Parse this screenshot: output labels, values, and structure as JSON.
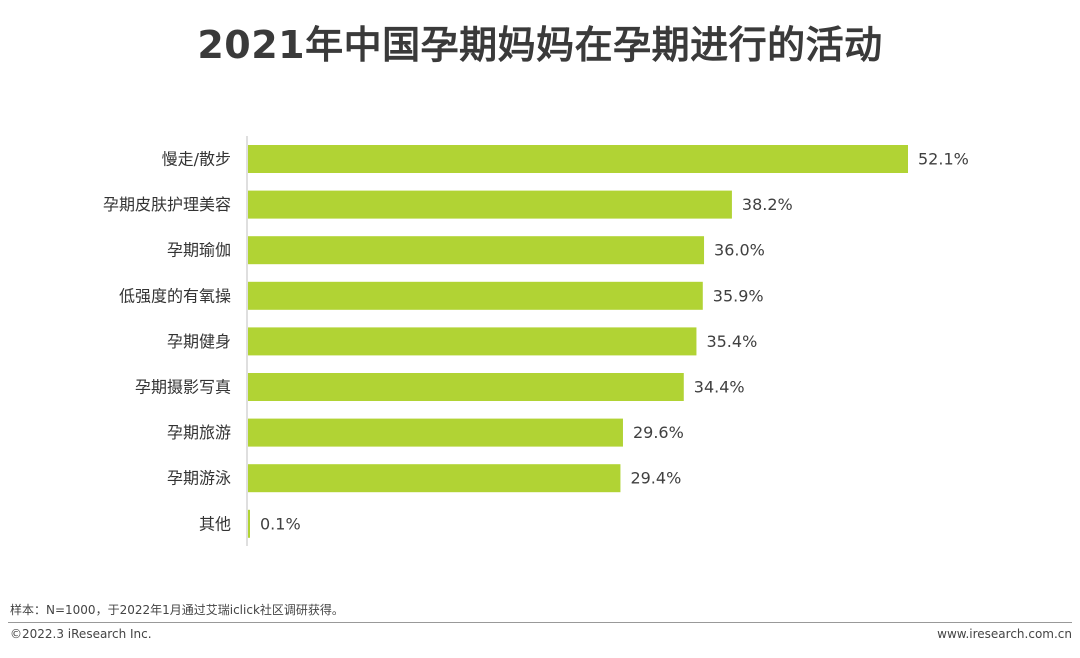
{
  "header": {
    "title": "2021年中国孕期妈妈在孕期进行的活动"
  },
  "chart_data": {
    "type": "bar",
    "orientation": "horizontal",
    "title": "2021年中国孕期妈妈在孕期进行的活动",
    "categories": [
      "慢走/散步",
      "孕期皮肤护理美容",
      "孕期瑜伽",
      "低强度的有氧操",
      "孕期健身",
      "孕期摄影写真",
      "孕期旅游",
      "孕期游泳",
      "其他"
    ],
    "values": [
      52.1,
      38.2,
      36.0,
      35.9,
      35.4,
      34.4,
      29.6,
      29.4,
      0.1
    ],
    "value_labels": [
      "52.1%",
      "38.2%",
      "36.0%",
      "35.9%",
      "35.4%",
      "34.4%",
      "29.6%",
      "29.4%",
      "0.1%"
    ],
    "unit": "%",
    "xlim": [
      0,
      52.1
    ],
    "bar_color": "#b1d334",
    "axis_color": "#bfbfbf",
    "grid": false,
    "legend": "none"
  },
  "footer": {
    "note": "样本：N=1000，于2022年1月通过艾瑞iclick社区调研获得。",
    "copyright": "©2022.3 iResearch Inc.",
    "site": "www.iresearch.com.cn"
  }
}
